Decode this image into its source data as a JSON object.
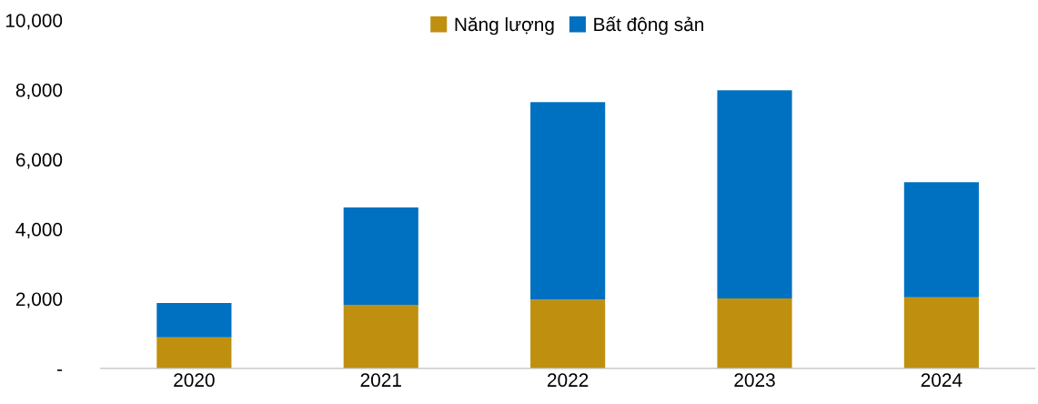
{
  "chart_data": {
    "type": "bar",
    "stacked": true,
    "categories": [
      "2020",
      "2021",
      "2022",
      "2023",
      "2024"
    ],
    "series": [
      {
        "name": "Năng lượng",
        "color": "#bf9010",
        "values": [
          890,
          1830,
          1980,
          2010,
          2040
        ]
      },
      {
        "name": "Bất động sản",
        "color": "#0070c0",
        "values": [
          990,
          2790,
          5670,
          5980,
          3310
        ]
      }
    ],
    "ylim": [
      0,
      10000
    ],
    "yticks": [
      {
        "value": 0,
        "label": "-"
      },
      {
        "value": 2000,
        "label": "2,000"
      },
      {
        "value": 4000,
        "label": "4,000"
      },
      {
        "value": 6000,
        "label": "6,000"
      },
      {
        "value": 8000,
        "label": "8,000"
      },
      {
        "value": 10000,
        "label": "10,000"
      }
    ],
    "grid": false,
    "legend": "top"
  }
}
